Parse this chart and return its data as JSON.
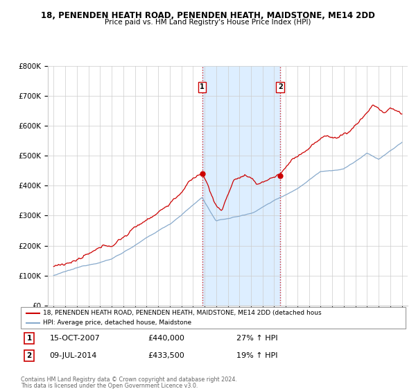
{
  "title": "18, PENENDEN HEATH ROAD, PENENDEN HEATH, MAIDSTONE, ME14 2DD",
  "subtitle": "Price paid vs. HM Land Registry's House Price Index (HPI)",
  "ylabel_ticks": [
    "£0",
    "£100K",
    "£200K",
    "£300K",
    "£400K",
    "£500K",
    "£600K",
    "£700K",
    "£800K"
  ],
  "ylabel_values": [
    0,
    100000,
    200000,
    300000,
    400000,
    500000,
    600000,
    700000,
    800000
  ],
  "xlim_start": 1994.5,
  "xlim_end": 2025.5,
  "ylim": [
    0,
    800000
  ],
  "sale1_x": 2007.79,
  "sale1_y": 440000,
  "sale2_x": 2014.52,
  "sale2_y": 433500,
  "line1_color": "#cc0000",
  "line2_color": "#88aacc",
  "shade_color": "#ddeeff",
  "legend1_text": "18, PENENDEN HEATH ROAD, PENENDEN HEATH, MAIDSTONE, ME14 2DD (detached hous",
  "legend2_text": "HPI: Average price, detached house, Maidstone",
  "sale1_date": "15-OCT-2007",
  "sale1_price": "£440,000",
  "sale1_hpi": "27% ↑ HPI",
  "sale2_date": "09-JUL-2014",
  "sale2_price": "£433,500",
  "sale2_hpi": "19% ↑ HPI",
  "footer1": "Contains HM Land Registry data © Crown copyright and database right 2024.",
  "footer2": "This data is licensed under the Open Government Licence v3.0.",
  "background_color": "#ffffff",
  "grid_color": "#cccccc"
}
